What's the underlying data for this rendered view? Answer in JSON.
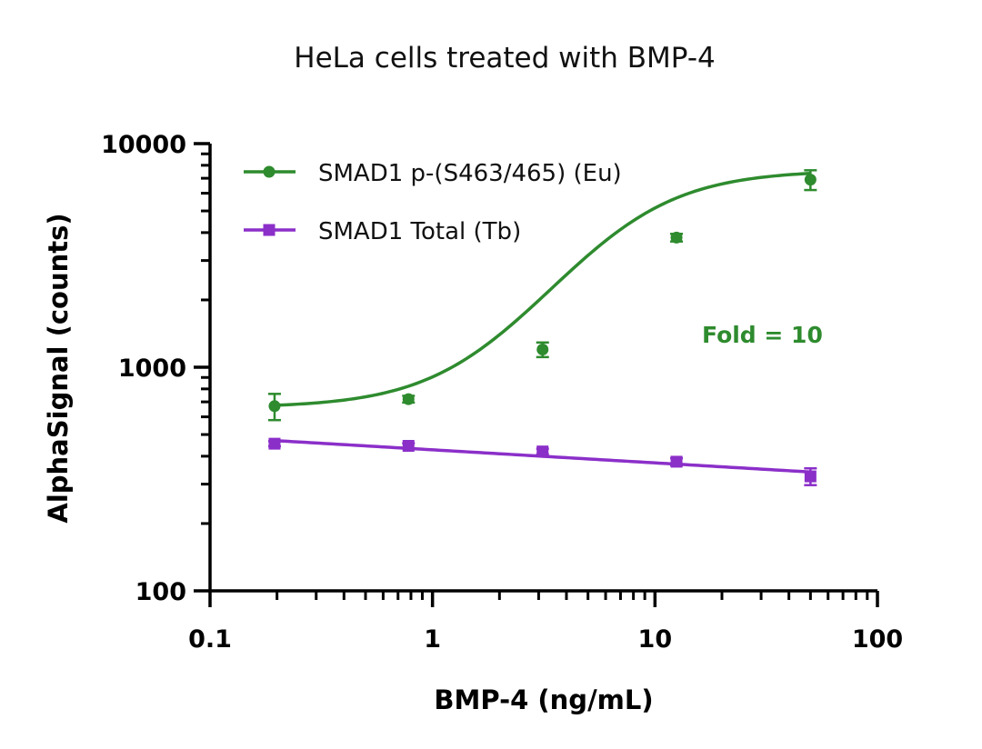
{
  "chart_data": {
    "type": "scatter",
    "title": "HeLa cells treated with BMP-4",
    "xlabel": "BMP-4 (ng/mL)",
    "ylabel": "AlphaSignal (counts)",
    "xscale": "log",
    "yscale": "log",
    "xlim": [
      0.1,
      100
    ],
    "ylim": [
      100,
      10000
    ],
    "x_ticks": [
      {
        "value": 0.1,
        "label": "0.1"
      },
      {
        "value": 1,
        "label": "1"
      },
      {
        "value": 10,
        "label": "10"
      },
      {
        "value": 100,
        "label": "100"
      }
    ],
    "y_ticks": [
      {
        "value": 100,
        "label": "100"
      },
      {
        "value": 1000,
        "label": "1000"
      },
      {
        "value": 10000,
        "label": "10000"
      }
    ],
    "legend_position": "top-left",
    "series": [
      {
        "name": "SMAD1 p-(S463/465) (Eu)",
        "color": "#2e8b2e",
        "marker": "circle",
        "fit": "sigmoid",
        "x": [
          0.195,
          0.78,
          3.125,
          12.5,
          50
        ],
        "y": [
          670,
          720,
          1200,
          3800,
          6900
        ],
        "err": [
          90,
          25,
          90,
          150,
          700
        ],
        "fit_params": {
          "bottom": 660,
          "top": 7600,
          "ec50": 7.0,
          "hill": 1.7
        }
      },
      {
        "name": "SMAD1 Total (Tb)",
        "color": "#8b2fc9",
        "marker": "square",
        "fit": "line",
        "x": [
          0.195,
          0.78,
          3.125,
          12.5,
          50
        ],
        "y": [
          455,
          445,
          420,
          378,
          325
        ],
        "err": [
          12,
          12,
          12,
          14,
          28
        ],
        "fit_line": {
          "y_start": 470,
          "y_end": 340
        }
      }
    ],
    "annotations": [
      {
        "text": "Fold = 10",
        "color": "#2e8b2e"
      }
    ]
  }
}
